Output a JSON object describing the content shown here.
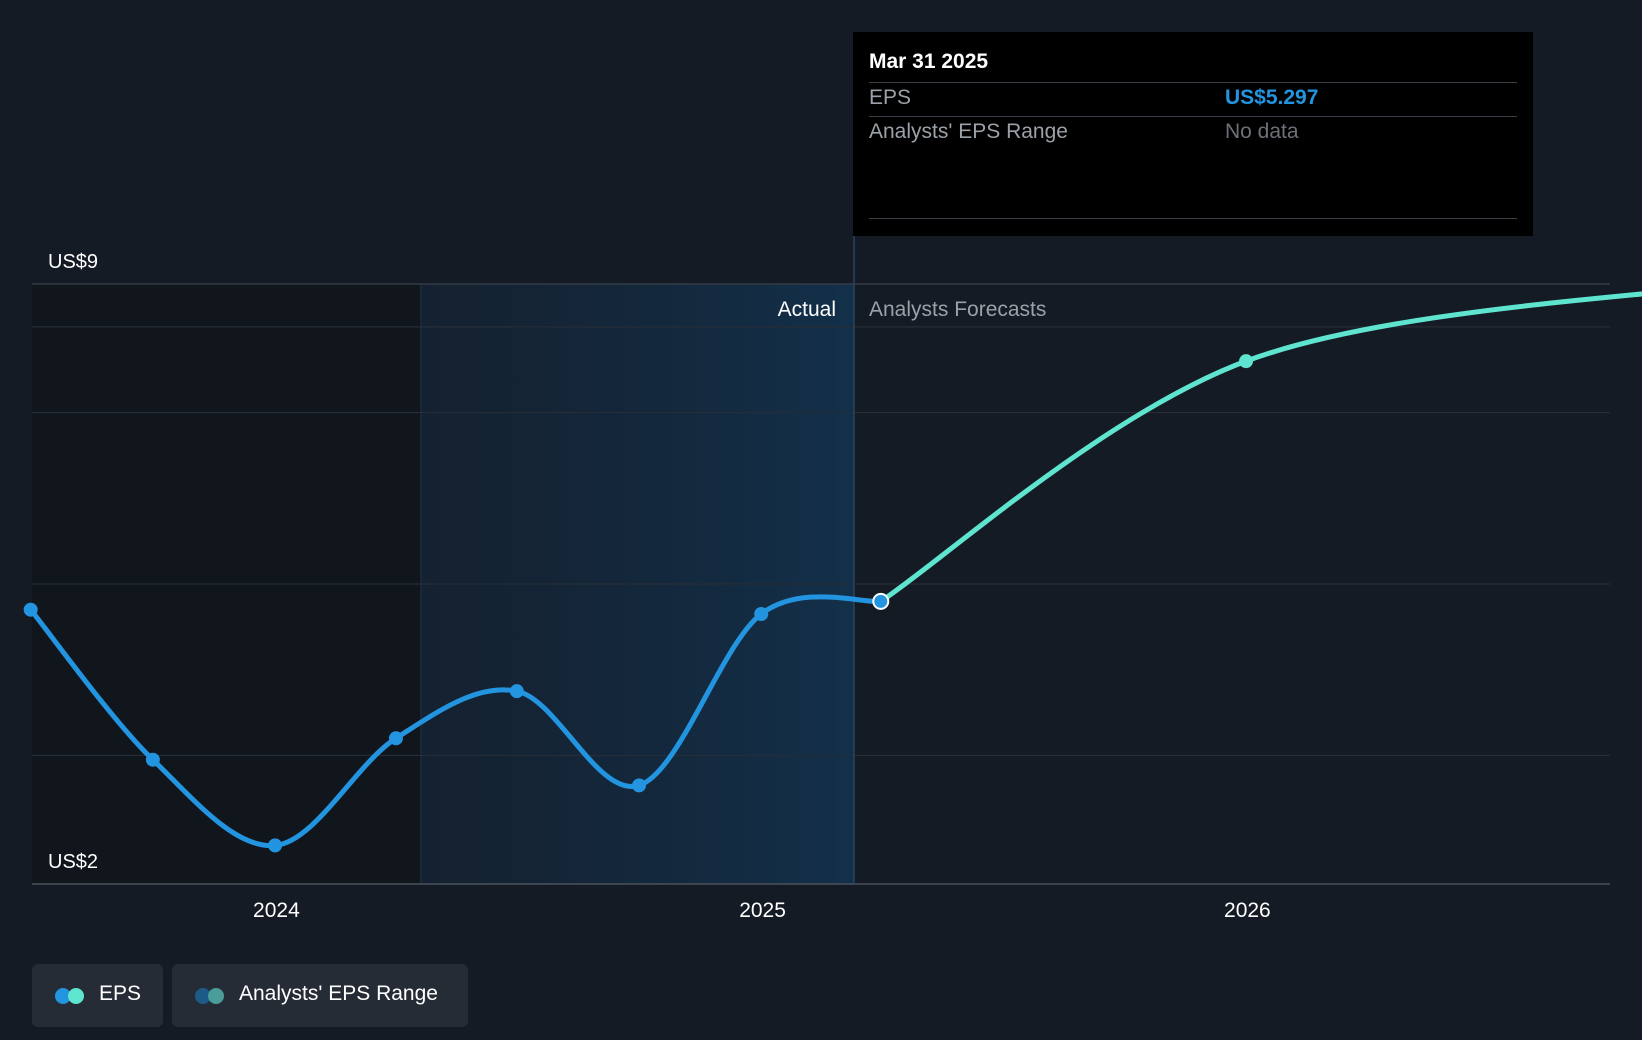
{
  "chart_data": {
    "type": "line",
    "ylabel_top": "US$9",
    "ylabel_bottom": "US$2",
    "ylim": [
      2,
      9
    ],
    "xlim": [
      "2023-07-01",
      "2026-10-01"
    ],
    "x_ticks": [
      {
        "label": "2024",
        "date": "2024-01-01"
      },
      {
        "label": "2025",
        "date": "2025-01-01"
      },
      {
        "label": "2026",
        "date": "2026-01-01"
      }
    ],
    "actual_label": "Actual",
    "forecast_label": "Analysts Forecasts",
    "series": [
      {
        "name": "EPS",
        "color": "#2394df",
        "points": [
          {
            "date": "2023-06-30",
            "value": 5.2
          },
          {
            "date": "2023-09-30",
            "value": 3.45
          },
          {
            "date": "2023-12-31",
            "value": 2.45
          },
          {
            "date": "2024-03-31",
            "value": 3.7
          },
          {
            "date": "2024-06-30",
            "value": 4.25
          },
          {
            "date": "2024-09-30",
            "value": 3.15
          },
          {
            "date": "2024-12-31",
            "value": 5.15
          },
          {
            "date": "2025-03-31",
            "value": 5.297
          }
        ]
      },
      {
        "name": "EPS Forecast",
        "color": "#5ee4cf",
        "points": [
          {
            "date": "2025-03-31",
            "value": 5.297
          },
          {
            "date": "2025-12-31",
            "value": 8.1
          },
          {
            "date": "2026-12-31",
            "value": 9.0
          }
        ]
      }
    ]
  },
  "tooltip": {
    "date": "Mar 31 2025",
    "eps_label": "EPS",
    "eps_value": "US$5.297",
    "range_label": "Analysts' EPS Range",
    "range_value": "No data"
  },
  "legend": {
    "eps_label": "EPS",
    "range_label": "Analysts' EPS Range"
  },
  "colors": {
    "background": "#151b24",
    "eps_actual": "#2394df",
    "eps_forecast": "#5ee4cf",
    "range_dark": "#1c5a88",
    "range_light": "#4a9d98"
  }
}
